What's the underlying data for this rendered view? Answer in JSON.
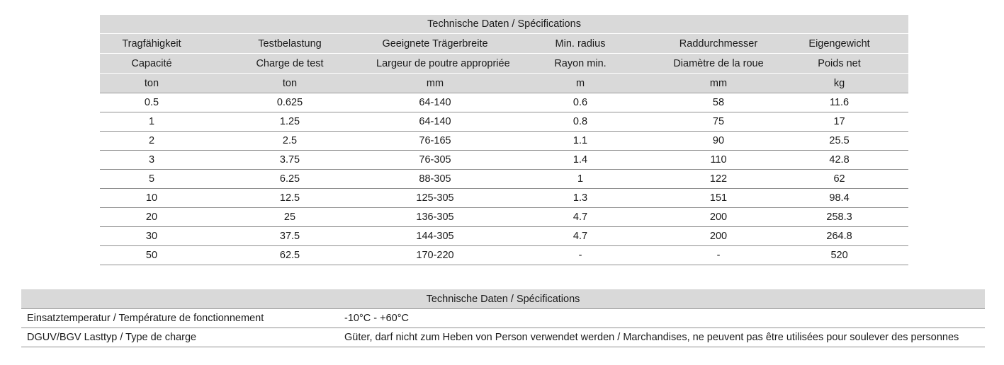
{
  "spec_table": {
    "title": "Technische Daten / Spécifications",
    "headers_de": [
      "Tragfähigkeit",
      "Testbelastung",
      "Geeignete Trägerbreite",
      "Min. radius",
      "Raddurchmesser",
      "Eigengewicht"
    ],
    "headers_fr": [
      "Capacité",
      "Charge de test",
      "Largeur de poutre appropriée",
      "Rayon min.",
      "Diamètre de la roue",
      "Poids net"
    ],
    "units": [
      "ton",
      "ton",
      "mm",
      "m",
      "mm",
      "kg"
    ],
    "rows": [
      [
        "0.5",
        "0.625",
        "64-140",
        "0.6",
        "58",
        "11.6"
      ],
      [
        "1",
        "1.25",
        "64-140",
        "0.8",
        "75",
        "17"
      ],
      [
        "2",
        "2.5",
        "76-165",
        "1.1",
        "90",
        "25.5"
      ],
      [
        "3",
        "3.75",
        "76-305",
        "1.4",
        "110",
        "42.8"
      ],
      [
        "5",
        "6.25",
        "88-305",
        "1",
        "122",
        "62"
      ],
      [
        "10",
        "12.5",
        "125-305",
        "1.3",
        "151",
        "98.4"
      ],
      [
        "20",
        "25",
        "136-305",
        "4.7",
        "200",
        "258.3"
      ],
      [
        "30",
        "37.5",
        "144-305",
        "4.7",
        "200",
        "264.8"
      ],
      [
        "50",
        "62.5",
        "170-220",
        "-",
        "-",
        "520"
      ]
    ]
  },
  "info_table": {
    "title": "Technische Daten / Spécifications",
    "rows": [
      {
        "label": "Einsatztemperatur / Température de fonctionnement",
        "value": "-10°C  -  +60°C"
      },
      {
        "label": "DGUV/BGV Lasttyp / Type de charge",
        "value": "Güter, darf nicht zum Heben von Person verwendet werden / Marchandises, ne peuvent pas être utilisées pour soulever des personnes"
      }
    ]
  }
}
